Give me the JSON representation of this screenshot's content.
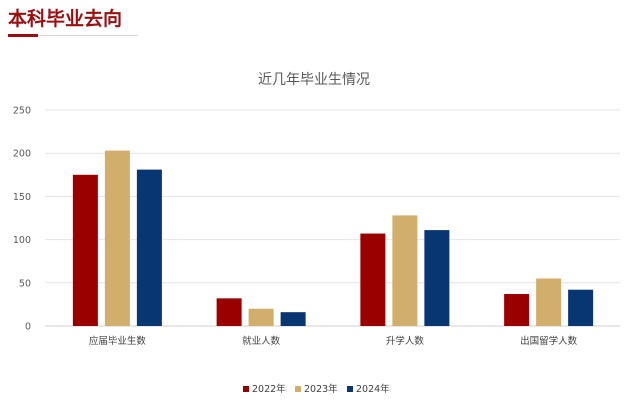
{
  "page": {
    "heading": "本科毕业去向",
    "accent_color": "#9b0d0f"
  },
  "chart_data": {
    "type": "bar",
    "title": "近几年毕业生情况",
    "xlabel": "",
    "ylabel": "",
    "categories": [
      "应届毕业生数",
      "就业人数",
      "升学人数",
      "出国留学人数"
    ],
    "series": [
      {
        "name": "2022年",
        "color": "#9b0000",
        "values": [
          175,
          32,
          107,
          37
        ]
      },
      {
        "name": "2023年",
        "color": "#d2ae6d",
        "values": [
          203,
          20,
          128,
          55
        ]
      },
      {
        "name": "2024年",
        "color": "#073673",
        "values": [
          181,
          16,
          111,
          42
        ]
      }
    ],
    "ylim": [
      0,
      250
    ],
    "yticks": [
      0,
      50,
      100,
      150,
      200,
      250
    ],
    "grid": true,
    "legend_position": "bottom"
  }
}
